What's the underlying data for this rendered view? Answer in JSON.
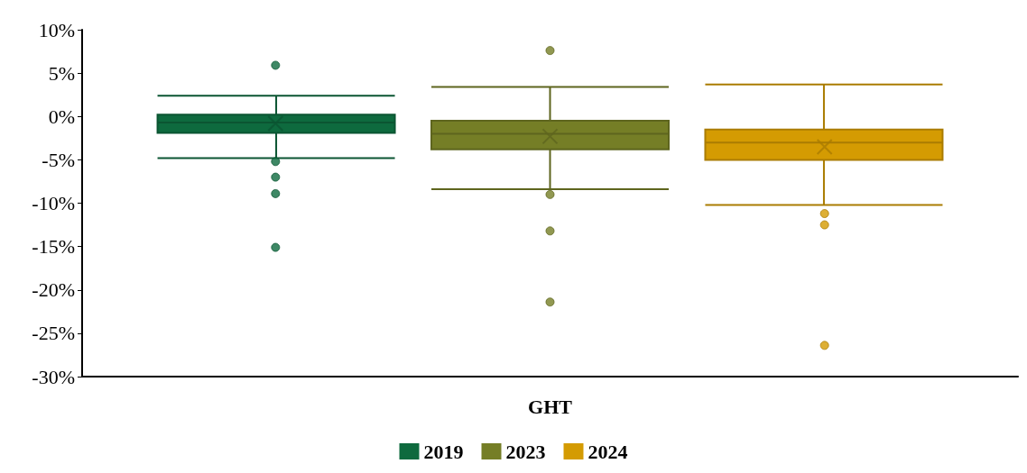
{
  "chart_data": {
    "type": "box",
    "categories": [
      "GHT"
    ],
    "series": [
      {
        "name": "2019",
        "color": "#0e6a3e",
        "boxes": [
          {
            "low": -4.8,
            "q1": -1.9,
            "median": -0.7,
            "q3": 0.2,
            "high": 2.4,
            "mean": -0.8,
            "outliers": [
              5.9,
              -5.2,
              -7.0,
              -8.9,
              -15.1
            ]
          }
        ]
      },
      {
        "name": "2023",
        "color": "#757e26",
        "boxes": [
          {
            "low": -8.4,
            "q1": -3.8,
            "median": -2.0,
            "q3": -0.5,
            "high": 3.4,
            "mean": -2.3,
            "outliers": [
              7.6,
              -9.0,
              -13.2,
              -21.4
            ]
          }
        ]
      },
      {
        "name": "2024",
        "color": "#d49b02",
        "boxes": [
          {
            "low": -10.2,
            "q1": -5.0,
            "median": -3.0,
            "q3": -1.5,
            "high": 3.7,
            "mean": -3.5,
            "outliers": [
              -11.2,
              -12.5,
              -26.4
            ]
          }
        ]
      }
    ],
    "ylim": [
      -30,
      10
    ],
    "yticks": [
      {
        "value": -30,
        "label": "-30%"
      },
      {
        "value": -25,
        "label": "-25%"
      },
      {
        "value": -20,
        "label": "-20%"
      },
      {
        "value": -15,
        "label": "-15%"
      },
      {
        "value": -10,
        "label": "-10%"
      },
      {
        "value": -5,
        "label": "-5%"
      },
      {
        "value": 0,
        "label": "0%"
      },
      {
        "value": 5,
        "label": "5%"
      },
      {
        "value": 10,
        "label": "10%"
      }
    ],
    "grid": false,
    "legend": "bottom",
    "marker": "circle"
  }
}
